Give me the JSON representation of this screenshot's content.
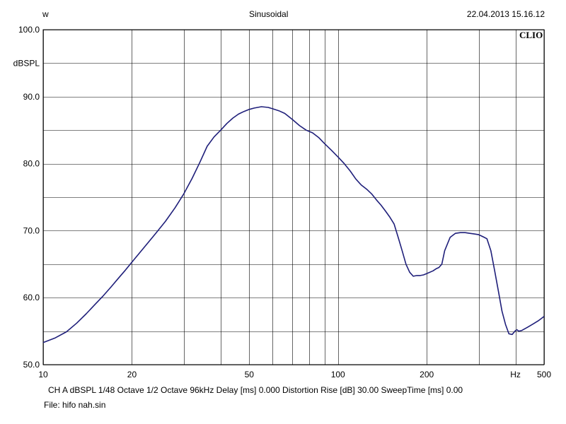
{
  "header": {
    "left": "w",
    "center": "Sinusoidal",
    "right": "22.04.2013 15.16.12"
  },
  "brand": "CLIO",
  "footer": {
    "settings": "CH A   dBSPL    1/48 Octave    1/2 Octave    96kHz    Delay [ms] 0.000    Distortion Rise [dB] 30.00    SweepTime [ms] 0.00",
    "file": "File: hifo nah.sin"
  },
  "chart_data": {
    "type": "line",
    "xscale": "log",
    "xlim": [
      10,
      500
    ],
    "ylim": [
      50,
      100
    ],
    "xlabel": "Hz",
    "ylabel": "dBSPL",
    "x_tick_labels": [
      {
        "value": 10,
        "label": "10"
      },
      {
        "value": 20,
        "label": "20"
      },
      {
        "value": 50,
        "label": "50"
      },
      {
        "value": 100,
        "label": "100"
      },
      {
        "value": 200,
        "label": "200"
      },
      {
        "value": 500,
        "label": "500"
      }
    ],
    "y_tick_labels": [
      {
        "value": 100,
        "label": "100.0"
      },
      {
        "value": 90,
        "label": "90.0"
      },
      {
        "value": 80,
        "label": "80.0"
      },
      {
        "value": 70,
        "label": "70.0"
      },
      {
        "value": 60,
        "label": "60.0"
      },
      {
        "value": 50,
        "label": "50.0"
      }
    ],
    "x_grid": [
      10,
      20,
      30,
      40,
      50,
      60,
      70,
      80,
      90,
      100,
      200,
      300,
      400,
      500
    ],
    "y_grid": [
      50,
      55,
      60,
      65,
      70,
      75,
      80,
      85,
      90,
      95,
      100
    ],
    "line_color": "#1f1f7a",
    "series": [
      {
        "x": [
          10,
          11,
          12,
          13,
          14,
          15,
          16,
          17,
          18,
          19,
          20,
          22,
          24,
          26,
          28,
          30,
          32,
          34,
          36,
          38,
          40,
          42,
          44,
          46,
          48,
          50,
          52,
          55,
          58,
          60,
          63,
          66,
          70,
          74,
          78,
          82,
          86,
          90,
          95,
          100,
          105,
          110,
          115,
          120,
          125,
          130,
          135,
          140,
          145,
          150,
          155,
          160,
          165,
          170,
          175,
          180,
          185,
          190,
          195,
          200,
          210,
          215,
          220,
          225,
          230,
          240,
          250,
          260,
          270,
          280,
          290,
          300,
          310,
          320,
          330,
          340,
          350,
          360,
          370,
          380,
          390,
          400,
          405,
          410,
          420,
          440,
          460,
          480,
          500
        ],
        "y": [
          53.3,
          54.0,
          54.9,
          56.2,
          57.6,
          59.0,
          60.3,
          61.6,
          62.9,
          64.1,
          65.3,
          67.5,
          69.5,
          71.4,
          73.4,
          75.5,
          77.8,
          80.2,
          82.6,
          84.0,
          85.0,
          86.0,
          86.8,
          87.4,
          87.8,
          88.1,
          88.3,
          88.5,
          88.4,
          88.2,
          87.9,
          87.5,
          86.6,
          85.7,
          85.0,
          84.6,
          83.9,
          83.0,
          82.0,
          81.0,
          80.0,
          78.9,
          77.7,
          76.8,
          76.2,
          75.5,
          74.6,
          73.8,
          72.9,
          72.0,
          71.0,
          69.0,
          67.0,
          65.0,
          63.8,
          63.2,
          63.3,
          63.3,
          63.4,
          63.6,
          64.0,
          64.3,
          64.5,
          65.0,
          67.0,
          69.0,
          69.6,
          69.7,
          69.7,
          69.6,
          69.5,
          69.4,
          69.1,
          68.8,
          67.0,
          64.0,
          61.0,
          58.0,
          56.0,
          54.6,
          54.5,
          55.1,
          55.2,
          55.0,
          55.1,
          55.6,
          56.1,
          56.6,
          57.2
        ]
      }
    ]
  }
}
